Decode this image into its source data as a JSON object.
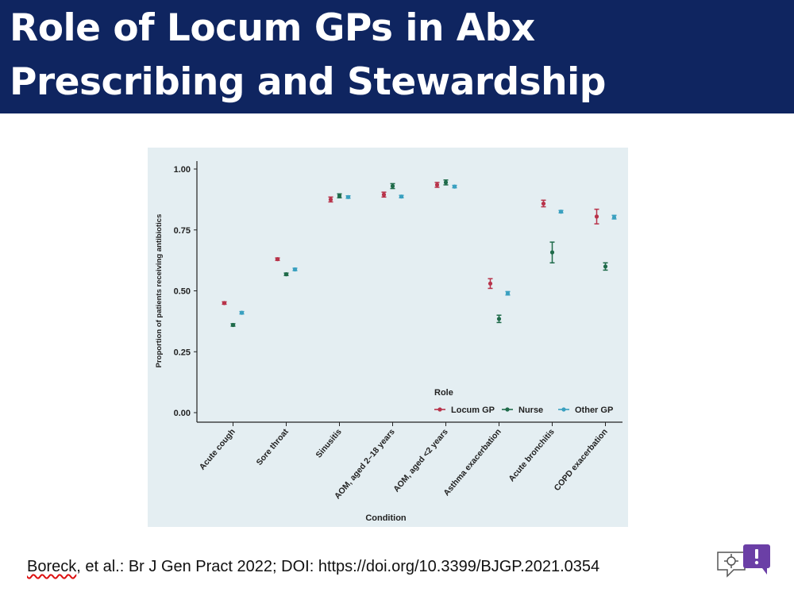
{
  "slide": {
    "title_line1": "Role of Locum GPs in Abx",
    "title_line2": "Prescribing and Stewardship",
    "citation": {
      "author": "Boreck",
      "rest": ", et al.: Br J Gen Pract 2022; DOI: https://doi.org/10.3399/BJGP.2021.0354"
    },
    "logo_icon": "feedback-chat-icon"
  },
  "colors": {
    "title_bg": "#0f2560",
    "panel_bg": "#e4eef2",
    "locum": "#b8334a",
    "nurse": "#1f6b4a",
    "other": "#3aa0c0"
  },
  "chart_data": {
    "type": "scatter",
    "xlabel": "Condition",
    "ylabel": "Proportion of patients receiving antibiotics",
    "ylim": [
      0,
      1
    ],
    "yticks": [
      "0.00",
      "0.25",
      "0.50",
      "0.75",
      "1.00"
    ],
    "ytick_values": [
      0,
      0.25,
      0.5,
      0.75,
      1.0
    ],
    "categories": [
      "Acute cough",
      "Sore throat",
      "Sinusitis",
      "AOM, aged 2–18 years",
      "AOM, aged <2 years",
      "Asthma exacerbation",
      "Acute bronchitis",
      "COPD exacerbation"
    ],
    "legend_title": "Role",
    "legend_position": "bottom-right",
    "grid": false,
    "series": [
      {
        "name": "Locum GP",
        "values": [
          0.45,
          0.63,
          0.875,
          0.895,
          0.935,
          0.53,
          0.858,
          0.805
        ],
        "lower": [
          0.445,
          0.625,
          0.865,
          0.885,
          0.925,
          0.51,
          0.845,
          0.775
        ],
        "upper": [
          0.455,
          0.635,
          0.885,
          0.905,
          0.945,
          0.55,
          0.872,
          0.835
        ]
      },
      {
        "name": "Nurse",
        "values": [
          0.36,
          0.568,
          0.89,
          0.93,
          0.945,
          0.385,
          0.658,
          0.6
        ],
        "lower": [
          0.355,
          0.563,
          0.882,
          0.92,
          0.935,
          0.37,
          0.615,
          0.585
        ],
        "upper": [
          0.365,
          0.573,
          0.898,
          0.94,
          0.955,
          0.4,
          0.7,
          0.615
        ]
      },
      {
        "name": "Other GP",
        "values": [
          0.41,
          0.588,
          0.885,
          0.887,
          0.928,
          0.49,
          0.825,
          0.802
        ],
        "lower": [
          0.405,
          0.583,
          0.88,
          0.882,
          0.923,
          0.483,
          0.82,
          0.795
        ],
        "upper": [
          0.415,
          0.593,
          0.89,
          0.892,
          0.933,
          0.497,
          0.83,
          0.81
        ]
      }
    ]
  }
}
